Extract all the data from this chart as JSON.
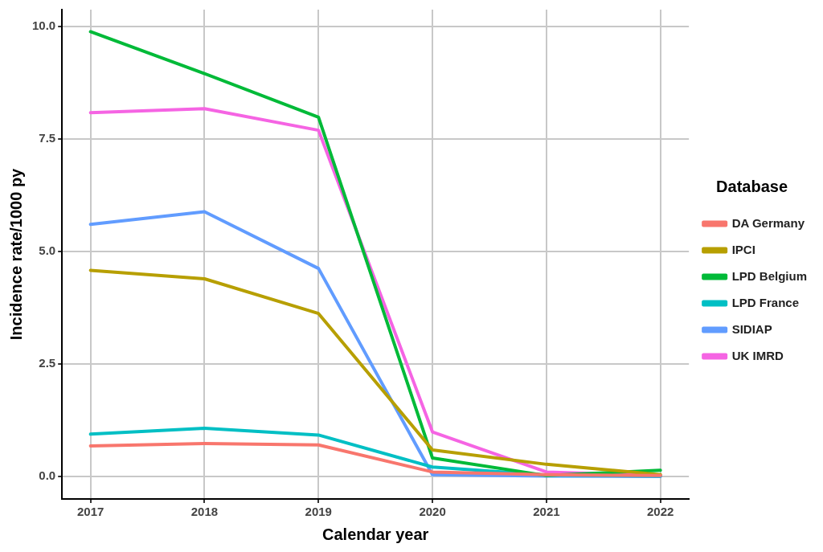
{
  "chart_data": {
    "type": "line",
    "xlabel": "Calendar year",
    "ylabel": "Incidence rate/1000 py",
    "legend_title": "Database",
    "legend": "right",
    "grid": true,
    "marker": "none",
    "line_style": "solid",
    "x": [
      2017,
      2018,
      2019,
      2020,
      2021,
      2022
    ],
    "xlim": [
      2016.75,
      2022.25
    ],
    "xticks": [
      2017,
      2018,
      2019,
      2020,
      2021,
      2022
    ],
    "ylim": [
      -0.5,
      10.37
    ],
    "yticks": [
      {
        "value": 0,
        "label": "0.0"
      },
      2.5,
      {
        "value": 5,
        "label": "5.0"
      },
      7.5,
      {
        "value": 10,
        "label": "10.0"
      }
    ],
    "series": [
      {
        "name": "DA Germany",
        "color": "#f8766d",
        "values": [
          0.68,
          0.73,
          0.7,
          0.1,
          0.04,
          0.02
        ]
      },
      {
        "name": "IPCI",
        "color": "#b79f00",
        "values": [
          4.58,
          4.39,
          3.62,
          0.59,
          0.27,
          0.04
        ]
      },
      {
        "name": "LPD Belgium",
        "color": "#00ba38",
        "values": [
          9.88,
          8.95,
          7.98,
          0.41,
          0.02,
          0.14
        ]
      },
      {
        "name": "LPD France",
        "color": "#00bfc4",
        "values": [
          0.94,
          1.07,
          0.92,
          0.21,
          0.03,
          0.01
        ]
      },
      {
        "name": "SIDIAP",
        "color": "#619cff",
        "values": [
          5.6,
          5.88,
          4.62,
          0.04,
          0.01,
          0
        ]
      },
      {
        "name": "UK IMRD",
        "color": "#f564e3",
        "values": [
          8.08,
          8.17,
          7.69,
          0.99,
          0.1,
          0.02
        ]
      }
    ]
  }
}
